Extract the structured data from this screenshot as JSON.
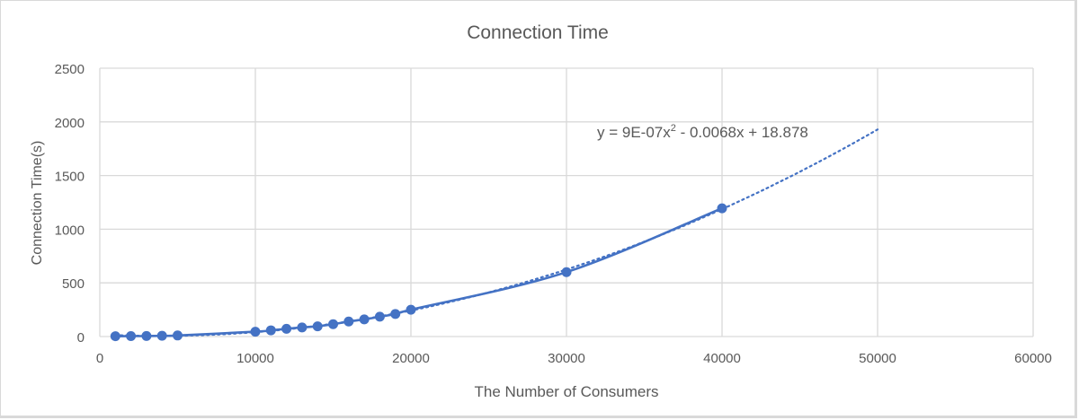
{
  "chart_data": {
    "type": "scatter",
    "title": "Connection Time",
    "xlabel": "The Number of Consumers",
    "ylabel": "Connection Time(s)",
    "xlim": [
      0,
      60000
    ],
    "ylim": [
      0,
      2500
    ],
    "x_ticks": [
      0,
      10000,
      20000,
      30000,
      40000,
      50000,
      60000
    ],
    "y_ticks": [
      0,
      500,
      1000,
      1500,
      2000,
      2500
    ],
    "grid": true,
    "legend": "none",
    "series": [
      {
        "name": "Connection Time",
        "style": "scatter with smooth lines and markers",
        "color": "#4472C4",
        "x": [
          1000,
          2000,
          3000,
          4000,
          5000,
          10000,
          11000,
          12000,
          13000,
          14000,
          15000,
          16000,
          17000,
          18000,
          19000,
          20000,
          30000,
          40000
        ],
        "y": [
          3,
          4,
          5,
          7,
          10,
          45,
          58,
          72,
          85,
          95,
          115,
          140,
          160,
          185,
          210,
          250,
          600,
          1195
        ]
      }
    ],
    "trendline": {
      "type": "polynomial (order 2)",
      "style": "dotted",
      "color": "#4472C4",
      "equation": "y = 9E-07x² - 0.0068x + 18.878",
      "coefficients": {
        "a": 9e-07,
        "b": -0.0068,
        "c": 18.878
      },
      "x_range": [
        1000,
        50000
      ]
    }
  },
  "title": "Connection Time",
  "xlabel": "The Number of Consumers",
  "ylabel": "Connection Time(s)",
  "equation_label": "y = 9E-07x",
  "equation_sup": "2",
  "equation_rest": " - 0.0068x + 18.878",
  "x_tick_labels": [
    "0",
    "10000",
    "20000",
    "30000",
    "40000",
    "50000",
    "60000"
  ],
  "y_tick_labels": [
    "0",
    "500",
    "1000",
    "1500",
    "2000",
    "2500"
  ]
}
